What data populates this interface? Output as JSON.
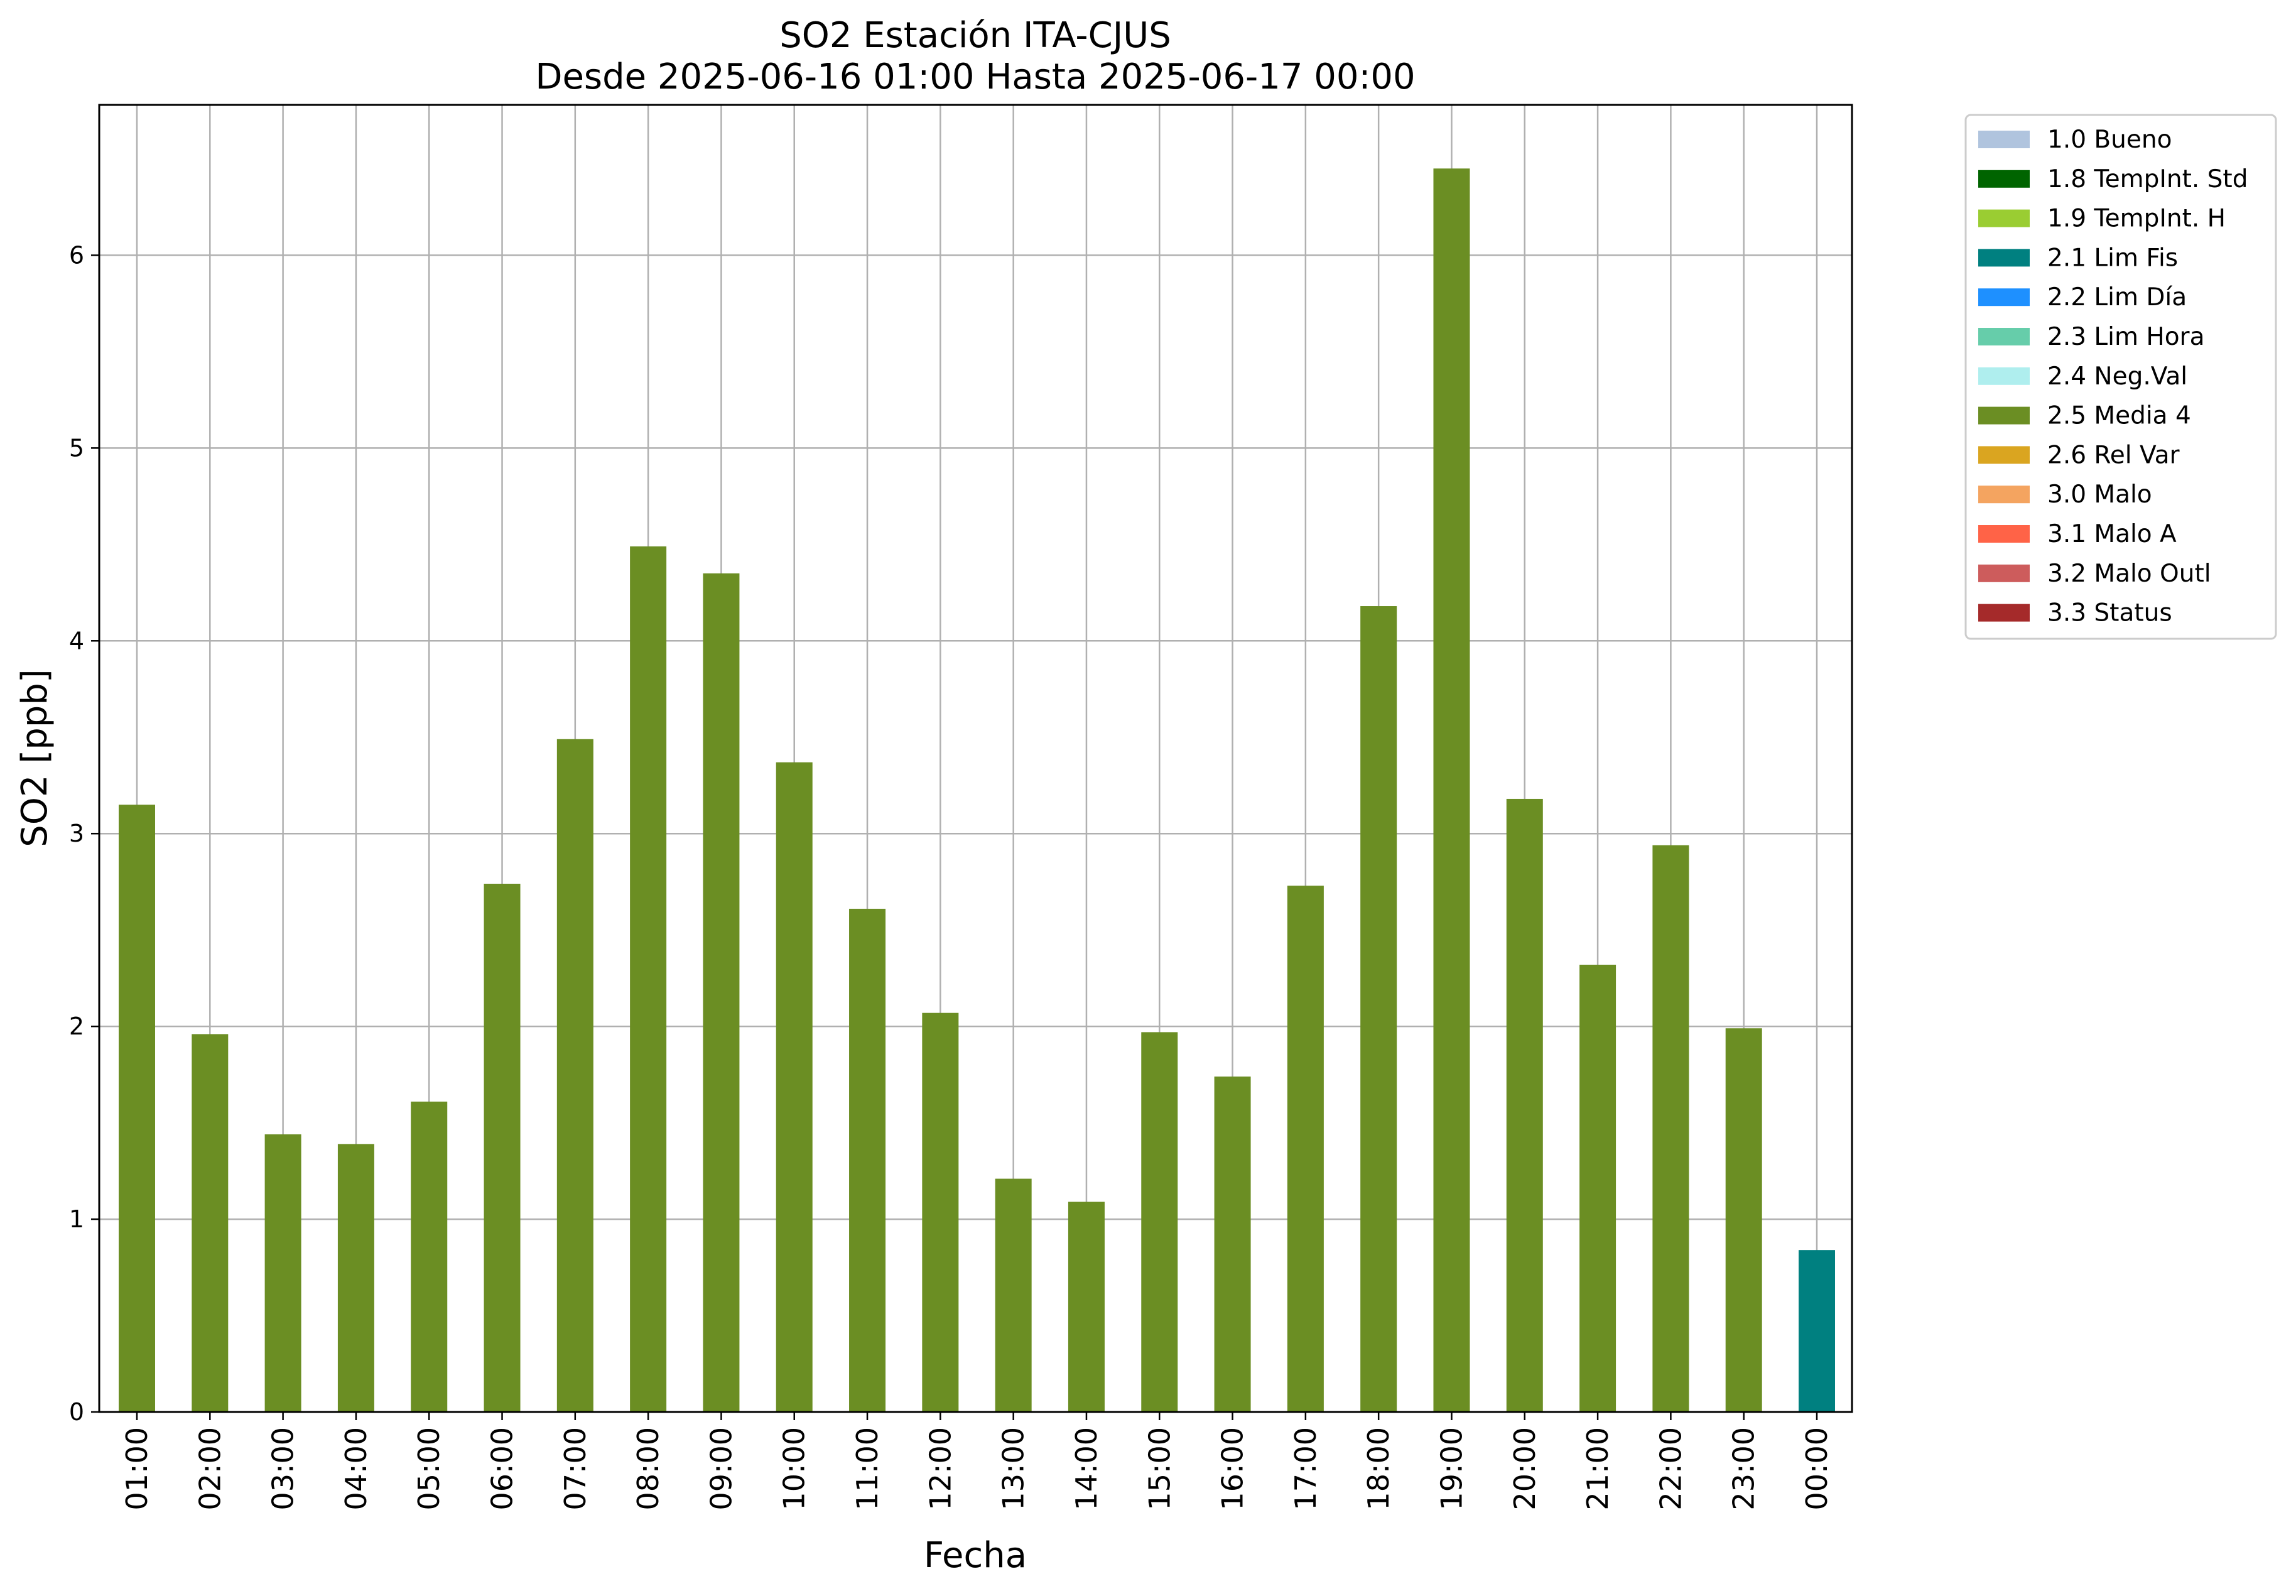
{
  "title_line1": "SO2 Estación ITA-CJUS",
  "title_line2": "Desde 2025-06-16 01:00 Hasta 2025-06-17 00:00",
  "chart_data": {
    "type": "bar",
    "title": "SO2 Estación ITA-CJUS\nDesde 2025-06-16 01:00 Hasta 2025-06-17 00:00",
    "xlabel": "Fecha",
    "ylabel": "SO2 [ppb]",
    "ylim": [
      0,
      6.78
    ],
    "yticks": [
      "0",
      "1",
      "2",
      "3",
      "4",
      "5",
      "6"
    ],
    "grid": true,
    "legend_position": "outside-top-right",
    "categories": [
      "01:00",
      "02:00",
      "03:00",
      "04:00",
      "05:00",
      "06:00",
      "07:00",
      "08:00",
      "09:00",
      "10:00",
      "11:00",
      "12:00",
      "13:00",
      "14:00",
      "15:00",
      "16:00",
      "17:00",
      "18:00",
      "19:00",
      "20:00",
      "21:00",
      "22:00",
      "23:00",
      "00:00"
    ],
    "values": [
      3.15,
      1.96,
      1.44,
      1.39,
      1.61,
      2.74,
      3.49,
      4.49,
      4.35,
      3.37,
      2.61,
      2.07,
      1.21,
      1.09,
      1.97,
      1.74,
      2.73,
      4.18,
      6.45,
      3.18,
      2.32,
      2.94,
      1.99,
      0.84
    ],
    "value_flags": [
      "2.5 Media 4",
      "2.5 Media 4",
      "2.5 Media 4",
      "2.5 Media 4",
      "2.5 Media 4",
      "2.5 Media 4",
      "2.5 Media 4",
      "2.5 Media 4",
      "2.5 Media 4",
      "2.5 Media 4",
      "2.5 Media 4",
      "2.5 Media 4",
      "2.5 Media 4",
      "2.5 Media 4",
      "2.5 Media 4",
      "2.5 Media 4",
      "2.5 Media 4",
      "2.5 Media 4",
      "2.5 Media 4",
      "2.5 Media 4",
      "2.5 Media 4",
      "2.5 Media 4",
      "2.5 Media 4",
      "2.1 Lim Fis"
    ],
    "legend": [
      {
        "label": "1.0 Bueno",
        "color": "#b0c4de"
      },
      {
        "label": "1.8 TempInt. Std",
        "color": "#006400"
      },
      {
        "label": "1.9 TempInt. H",
        "color": "#9acd32"
      },
      {
        "label": "2.1 Lim Fis",
        "color": "#008080"
      },
      {
        "label": "2.2 Lim Día",
        "color": "#1e90ff"
      },
      {
        "label": "2.3 Lim Hora",
        "color": "#66cdaa"
      },
      {
        "label": "2.4 Neg.Val",
        "color": "#afeeee"
      },
      {
        "label": "2.5 Media 4",
        "color": "#6b8e23"
      },
      {
        "label": "2.6 Rel Var",
        "color": "#daa520"
      },
      {
        "label": "3.0 Malo",
        "color": "#f4a460"
      },
      {
        "label": "3.1 Malo A",
        "color": "#ff6347"
      },
      {
        "label": "3.2 Malo Outl",
        "color": "#cd5c5c"
      },
      {
        "label": "3.3 Status",
        "color": "#a52a2a"
      }
    ]
  }
}
